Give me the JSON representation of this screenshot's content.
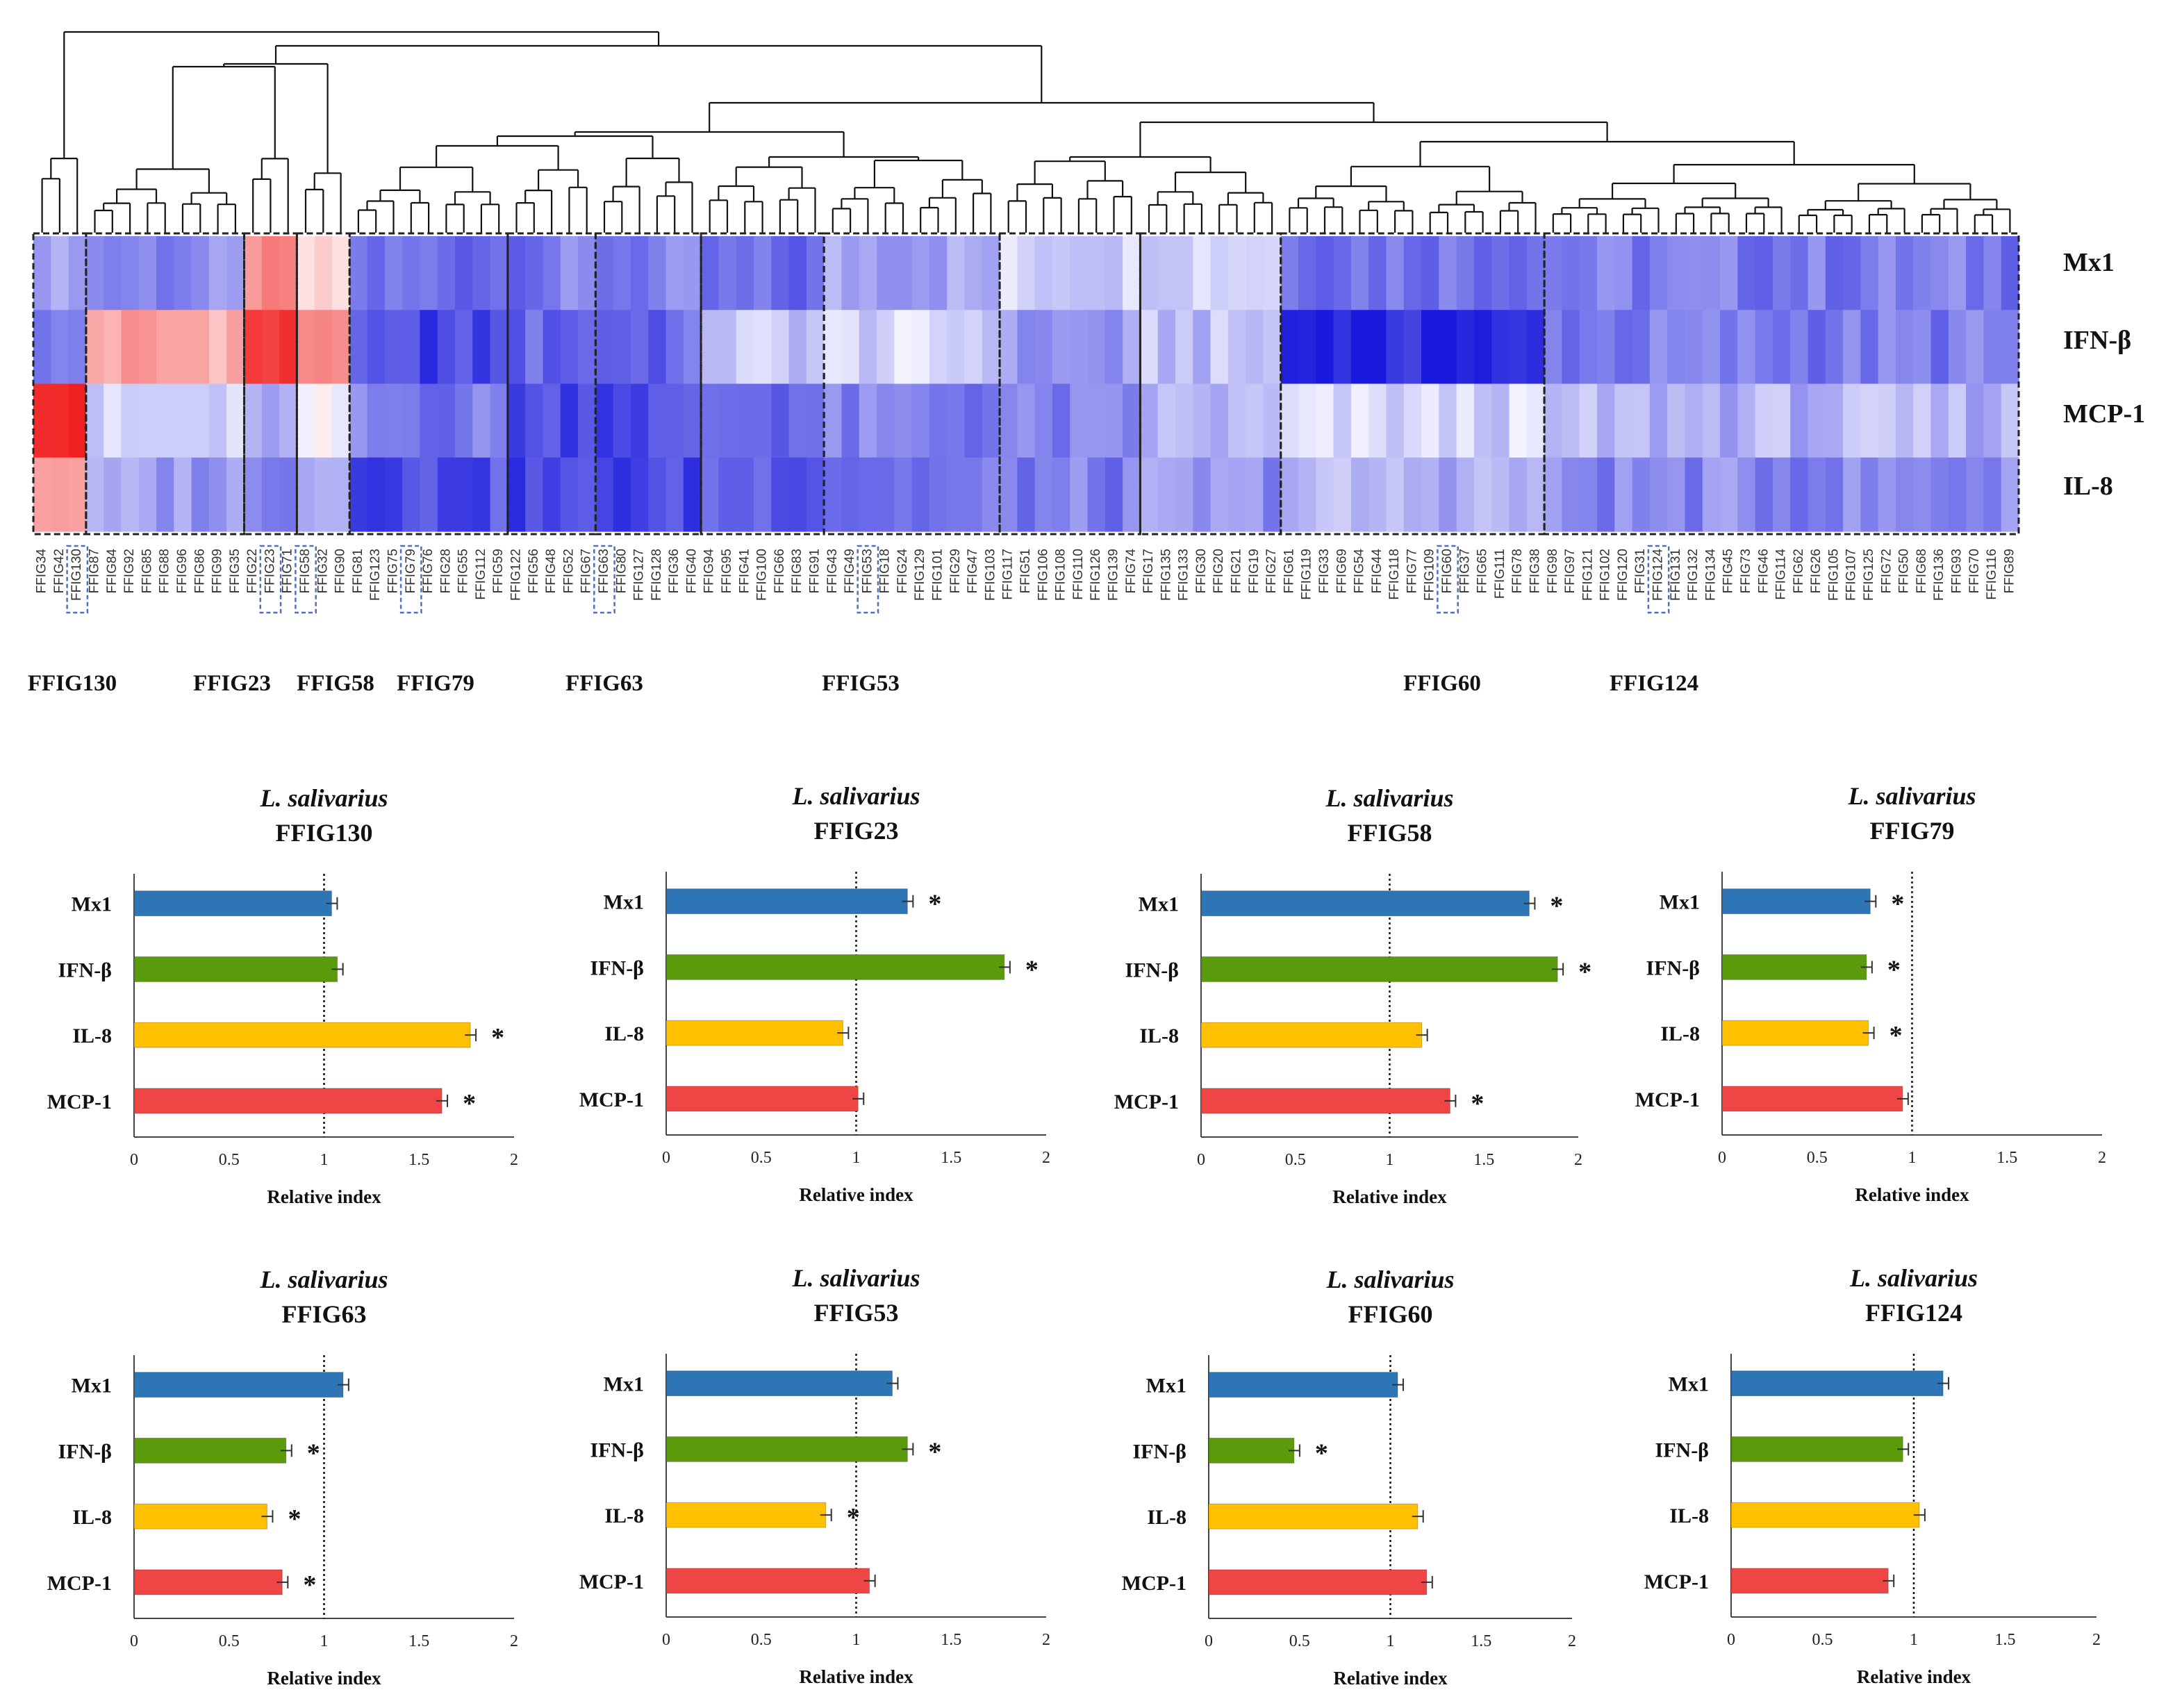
{
  "colors": {
    "mx1": "#2E75B6",
    "ifnb": "#5B9A0B",
    "il8": "#FFC000",
    "mcp1": "#F04545",
    "heat_low": "#1A1ADC",
    "heat_mid": "#F4F4FF",
    "heat_high": "#F01010",
    "box": "#222222",
    "highlight": "#4F6FBF"
  },
  "heatmap": {
    "row_labels": [
      "Mx1",
      "IFN-β",
      "MCP-1",
      "IL-8"
    ],
    "strain_labels": [
      "FFIG34",
      "FFIG42",
      "FFIG130",
      "FFIG87",
      "FFIG84",
      "FFIG92",
      "FFIG85",
      "FFIG88",
      "FFIG96",
      "FFIG86",
      "FFIG99",
      "FFIG35",
      "FFIG22",
      "FFIG23",
      "FFIG71",
      "FFIG58",
      "FFIG32",
      "FFIG90",
      "FFIG81",
      "FFIG123",
      "FFIG75",
      "FFIG79",
      "FFIG76",
      "FFIG28",
      "FFIG55",
      "FFIG112",
      "FFIG59",
      "FFIG122",
      "FFIG56",
      "FFIG48",
      "FFIG52",
      "FFIG67",
      "FFIG63",
      "FFIG80",
      "FFIG127",
      "FFIG128",
      "FFIG36",
      "FFIG40",
      "FFIG94",
      "FFIG95",
      "FFIG41",
      "FFIG100",
      "FFIG66",
      "FFIG83",
      "FFIG91",
      "FFIG43",
      "FFIG49",
      "FFIG53",
      "FFIG18",
      "FFIG24",
      "FFIG129",
      "FFIG101",
      "FFIG29",
      "FFIG47",
      "FFIG103",
      "FFIG117",
      "FFIG51",
      "FFIG106",
      "FFIG108",
      "FFIG110",
      "FFIG126",
      "FFIG139",
      "FFIG74",
      "FFIG17",
      "FFIG135",
      "FFIG133",
      "FFIG30",
      "FFIG20",
      "FFIG21",
      "FFIG19",
      "FFIG27",
      "FFIG61",
      "FFIG119",
      "FFIG33",
      "FFIG69",
      "FFIG54",
      "FFIG44",
      "FFIG118",
      "FFIG77",
      "FFIG109",
      "FFIG60",
      "FFIG37",
      "FFIG65",
      "FFIG111",
      "FFIG78",
      "FFIG38",
      "FFIG98",
      "FFIG97",
      "FFIG121",
      "FFIG102",
      "FFIG120",
      "FFIG31",
      "FFIG124",
      "FFIG131",
      "FFIG132",
      "FFIG134",
      "FFIG45",
      "FFIG73",
      "FFIG46",
      "FFIG114",
      "FFIG62",
      "FFIG26",
      "FFIG105",
      "FFIG107",
      "FFIG125",
      "FFIG72",
      "FFIG50",
      "FFIG68",
      "FFIG136",
      "FFIG93",
      "FFIG70",
      "FFIG116",
      "FFIG89"
    ],
    "cluster_labels": [
      "FFIG130",
      "FFIG23",
      "FFIG58",
      "FFIG79",
      "FFIG63",
      "FFIG53",
      "FFIG60",
      "FFIG124"
    ]
  },
  "chart_data": [
    {
      "type": "bar",
      "orientation": "horizontal",
      "title_italic": "L. salivarius",
      "title": "FFIG130",
      "categories": [
        "Mx1",
        "IFN-β",
        "IL-8",
        "MCP-1"
      ],
      "values": [
        1.04,
        1.07,
        1.77,
        1.62
      ],
      "significant": [
        false,
        false,
        true,
        true
      ],
      "xlabel": "Relative index",
      "xlim": [
        0,
        2
      ],
      "xticks": [
        "0",
        "0.5",
        "1",
        "1.5",
        "2"
      ],
      "reference_line": 1
    },
    {
      "type": "bar",
      "orientation": "horizontal",
      "title_italic": "L. salivarius",
      "title": "FFIG23",
      "categories": [
        "Mx1",
        "IFN-β",
        "IL-8",
        "MCP-1"
      ],
      "values": [
        1.27,
        1.78,
        0.93,
        1.01
      ],
      "significant": [
        true,
        true,
        false,
        false
      ],
      "xlabel": "Relative index",
      "xlim": [
        0,
        2
      ],
      "xticks": [
        "0",
        "0.5",
        "1",
        "1.5",
        "2"
      ],
      "reference_line": 1
    },
    {
      "type": "bar",
      "orientation": "horizontal",
      "title_italic": "L. salivarius",
      "title": "FFIG58",
      "categories": [
        "Mx1",
        "IFN-β",
        "IL-8",
        "MCP-1"
      ],
      "values": [
        1.74,
        1.89,
        1.17,
        1.32
      ],
      "significant": [
        true,
        true,
        false,
        true
      ],
      "xlabel": "Relative index",
      "xlim": [
        0,
        2
      ],
      "xticks": [
        "0",
        "0.5",
        "1",
        "1.5",
        "2"
      ],
      "reference_line": 1
    },
    {
      "type": "bar",
      "orientation": "horizontal",
      "title_italic": "L. salivarius",
      "title": "FFIG79",
      "categories": [
        "Mx1",
        "IFN-β",
        "IL-8",
        "MCP-1"
      ],
      "values": [
        0.78,
        0.76,
        0.77,
        0.95
      ],
      "significant": [
        true,
        true,
        true,
        false
      ],
      "xlabel": "Relative index",
      "xlim": [
        0,
        2
      ],
      "xticks": [
        "0",
        "0.5",
        "1",
        "1.5",
        "2"
      ],
      "reference_line": 1
    },
    {
      "type": "bar",
      "orientation": "horizontal",
      "title_italic": "L. salivarius",
      "title": "FFIG63",
      "categories": [
        "Mx1",
        "IFN-β",
        "IL-8",
        "MCP-1"
      ],
      "values": [
        1.1,
        0.8,
        0.7,
        0.78
      ],
      "significant": [
        false,
        true,
        true,
        true
      ],
      "xlabel": "Relative index",
      "xlim": [
        0,
        2
      ],
      "xticks": [
        "0",
        "0.5",
        "1",
        "1.5",
        "2"
      ],
      "reference_line": 1
    },
    {
      "type": "bar",
      "orientation": "horizontal",
      "title_italic": "L. salivarius",
      "title": "FFIG53",
      "categories": [
        "Mx1",
        "IFN-β",
        "IL-8",
        "MCP-1"
      ],
      "values": [
        1.19,
        1.27,
        0.84,
        1.07
      ],
      "significant": [
        false,
        true,
        true,
        false
      ],
      "xlabel": "Relative index",
      "xlim": [
        0,
        2
      ],
      "xticks": [
        "0",
        "0.5",
        "1",
        "1.5",
        "2"
      ],
      "reference_line": 1
    },
    {
      "type": "bar",
      "orientation": "horizontal",
      "title_italic": "L. salivarius",
      "title": "FFIG60",
      "categories": [
        "Mx1",
        "IFN-β",
        "IL-8",
        "MCP-1"
      ],
      "values": [
        1.04,
        0.47,
        1.15,
        1.2
      ],
      "significant": [
        false,
        true,
        false,
        false
      ],
      "xlabel": "Relative index",
      "xlim": [
        0,
        2
      ],
      "xticks": [
        "0",
        "0.5",
        "1",
        "1.5",
        "2"
      ],
      "reference_line": 1
    },
    {
      "type": "bar",
      "orientation": "horizontal",
      "title_italic": "L. salivarius",
      "title": "FFIG124",
      "categories": [
        "Mx1",
        "IFN-β",
        "IL-8",
        "MCP-1"
      ],
      "values": [
        1.16,
        0.94,
        1.03,
        0.86
      ],
      "significant": [
        false,
        false,
        false,
        false
      ],
      "xlabel": "Relative index",
      "xlim": [
        0,
        2
      ],
      "xticks": [
        "0",
        "0.5",
        "1",
        "1.5",
        "2"
      ],
      "reference_line": 1
    }
  ]
}
